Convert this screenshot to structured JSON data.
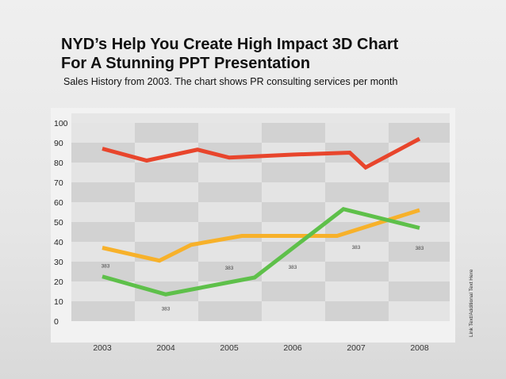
{
  "header": {
    "title_line1": "NYD’s Help You Create High Impact 3D Chart",
    "title_line2": "For A Stunning PPT Presentation",
    "subtitle": "Sales History from 2003. The chart shows PR consulting services per month"
  },
  "side_note": "Link Text/Additional Text Here",
  "chart_data": {
    "type": "line",
    "x": [
      2003,
      2003.5,
      2004,
      2004.5,
      2005,
      2005.5,
      2006,
      2006.5,
      2007,
      2007.5,
      2008
    ],
    "x_tick_labels": [
      "2003",
      "2004",
      "2005",
      "2006",
      "2007",
      "2008"
    ],
    "y_tick_labels": [
      "100",
      "90",
      "80",
      "70",
      "60",
      "50",
      "40",
      "30",
      "20",
      "10",
      "0"
    ],
    "ylim": [
      0,
      100
    ],
    "grid": true,
    "legend": "none",
    "series": [
      {
        "color": "#e8452c",
        "points": [
          [
            2003,
            87
          ],
          [
            2003.7,
            81
          ],
          [
            2004.5,
            86.5
          ],
          [
            2005,
            82.5
          ],
          [
            2006,
            84
          ],
          [
            2006.9,
            85
          ],
          [
            2007.15,
            77.5
          ],
          [
            2008,
            92
          ]
        ]
      },
      {
        "color": "#f7b12a",
        "points": [
          [
            2003,
            37
          ],
          [
            2003.9,
            30.5
          ],
          [
            2004.4,
            38.5
          ],
          [
            2005.2,
            43
          ],
          [
            2006.7,
            43
          ],
          [
            2008,
            56
          ]
        ]
      },
      {
        "color": "#5ec04a",
        "points": [
          [
            2003,
            22.5
          ],
          [
            2004,
            13.5
          ],
          [
            2005.4,
            22
          ],
          [
            2006.8,
            56.5
          ],
          [
            2008,
            47
          ]
        ]
      }
    ],
    "annotations": [
      {
        "text": "383",
        "x": 2003.05,
        "y": 27
      },
      {
        "text": "383",
        "x": 2004,
        "y": 5.5
      },
      {
        "text": "383",
        "x": 2005,
        "y": 26
      },
      {
        "text": "383",
        "x": 2006,
        "y": 26.5
      },
      {
        "text": "383",
        "x": 2007,
        "y": 36.5
      },
      {
        "text": "383",
        "x": 2008,
        "y": 36
      }
    ]
  }
}
